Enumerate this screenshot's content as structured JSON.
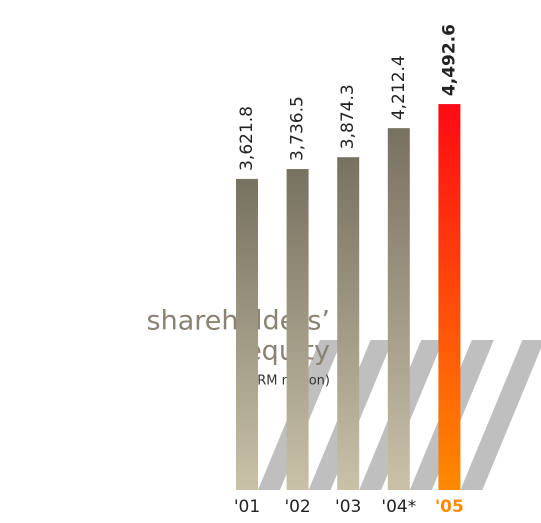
{
  "chart_data": {
    "type": "bar",
    "title": [
      "shareholders’",
      "equity"
    ],
    "subtitle": "(RM million)",
    "categories": [
      "'01",
      "'02",
      "'03",
      "'04*",
      "'05"
    ],
    "values": [
      3621.8,
      3736.5,
      3874.3,
      4212.4,
      4492.6
    ],
    "value_labels": [
      "3,621.8",
      "3,736.5",
      "3,874.3",
      "4,212.4",
      "4,492.6"
    ],
    "colors": [
      [
        "#777160",
        "#c9c1a8"
      ],
      [
        "#777160",
        "#c9c1a8"
      ],
      [
        "#777160",
        "#c9c1a8"
      ],
      [
        "#777160",
        "#c9c1a8"
      ],
      [
        "#ff0a14",
        "#ff8a00"
      ]
    ],
    "ylim": [
      0,
      5000
    ]
  }
}
